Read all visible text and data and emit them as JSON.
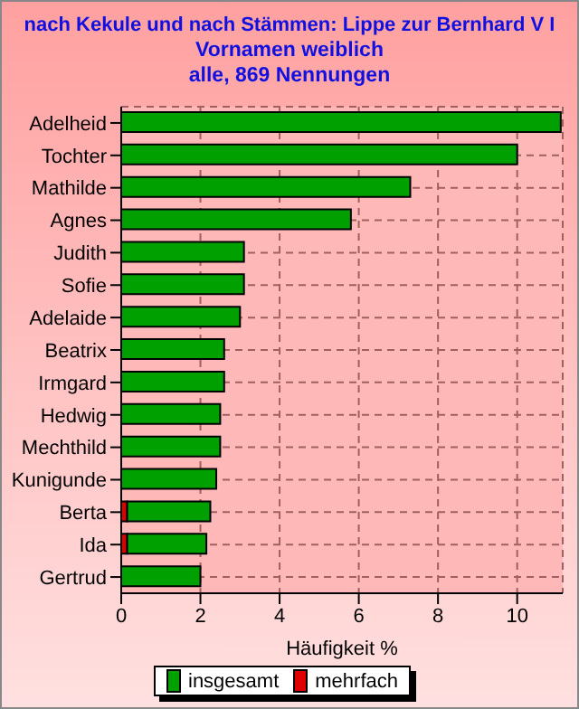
{
  "chart_data": {
    "type": "bar",
    "orientation": "horizontal",
    "stacked": true,
    "title": "nach Kekule und nach Stämmen: Lippe zur Bernhard V I",
    "subtitle": "Vornamen weiblich\nalle, 869 Nennungen",
    "xlabel": "Häufigkeit %",
    "categories": [
      "Adelheid",
      "Tochter",
      "Mathilde",
      "Agnes",
      "Judith",
      "Sofie",
      "Adelaide",
      "Beatrix",
      "Irmgard",
      "Hedwig",
      "Mechthild",
      "Kunigunde",
      "Berta",
      "Ida",
      "Gertrud"
    ],
    "series": [
      {
        "name": "mehrfach",
        "color": "#e00000",
        "values": [
          null,
          null,
          null,
          null,
          null,
          null,
          null,
          null,
          null,
          null,
          null,
          null,
          0.15,
          0.15,
          null
        ]
      },
      {
        "name": "insgesamt",
        "color": "#00a000",
        "values": [
          11.1,
          10.0,
          7.3,
          5.8,
          3.1,
          3.1,
          3.0,
          2.6,
          2.6,
          2.5,
          2.5,
          2.4,
          2.1,
          2.0,
          2.0
        ]
      }
    ],
    "xlim": [
      0,
      11.15
    ],
    "xticks": [
      0,
      2,
      4,
      6,
      8,
      10
    ],
    "grid": true,
    "legend": "bottom"
  }
}
